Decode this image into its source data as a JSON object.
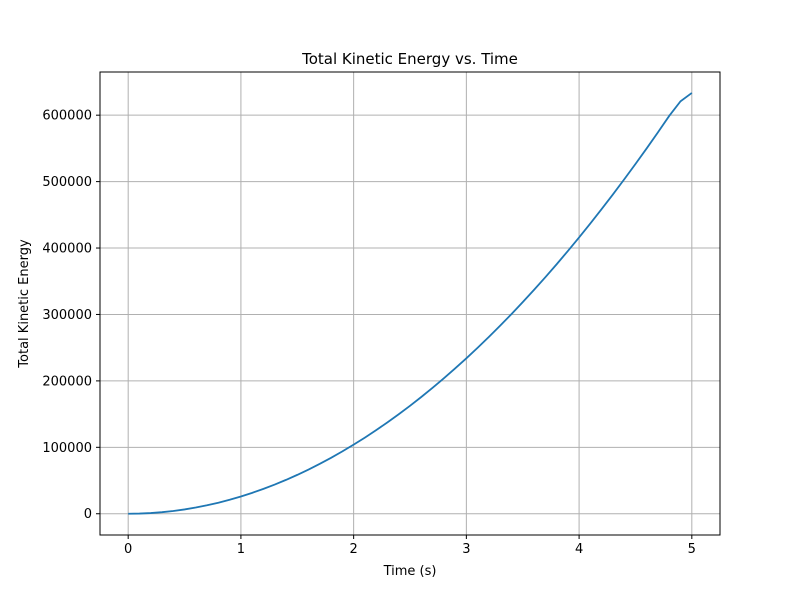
{
  "chart_data": {
    "type": "line",
    "title": "Total Kinetic Energy vs. Time",
    "xlabel": "Time (s)",
    "ylabel": "Total Kinetic Energy",
    "xlim": [
      -0.25,
      5.25
    ],
    "ylim": [
      -32000,
      665000
    ],
    "xticks": [
      0,
      1,
      2,
      3,
      4,
      5
    ],
    "xtick_labels": [
      "0",
      "1",
      "2",
      "3",
      "4",
      "5"
    ],
    "yticks": [
      0,
      100000,
      200000,
      300000,
      400000,
      500000,
      600000
    ],
    "ytick_labels": [
      "0",
      "100000",
      "200000",
      "300000",
      "400000",
      "500000",
      "600000"
    ],
    "grid": true,
    "series": [
      {
        "color": "#1f77b4",
        "x": [
          0,
          0.1,
          0.2,
          0.3,
          0.4,
          0.5,
          0.6,
          0.7,
          0.8,
          0.9,
          1.0,
          1.1,
          1.2,
          1.3,
          1.4,
          1.5,
          1.6,
          1.7,
          1.8,
          1.9,
          2.0,
          2.1,
          2.2,
          2.3,
          2.4,
          2.5,
          2.6,
          2.7,
          2.8,
          2.9,
          3.0,
          3.1,
          3.2,
          3.3,
          3.4,
          3.5,
          3.6,
          3.7,
          3.8,
          3.9,
          4.0,
          4.1,
          4.2,
          4.3,
          4.4,
          4.5,
          4.6,
          4.7,
          4.8,
          4.9,
          5.0
        ],
        "y": [
          0,
          260,
          1040,
          2340,
          4160,
          6500,
          9360,
          12740,
          16640,
          21060,
          26000,
          31460,
          37440,
          43940,
          50960,
          58500,
          66560,
          75140,
          84240,
          93860,
          104000,
          114660,
          125840,
          137540,
          149760,
          162500,
          175760,
          189540,
          203840,
          218660,
          234000,
          249860,
          266240,
          283140,
          300560,
          318500,
          336960,
          355940,
          375440,
          395460,
          416000,
          437060,
          458640,
          480740,
          503360,
          526500,
          550160,
          574340,
          599040,
          621000,
          633500
        ]
      }
    ]
  }
}
